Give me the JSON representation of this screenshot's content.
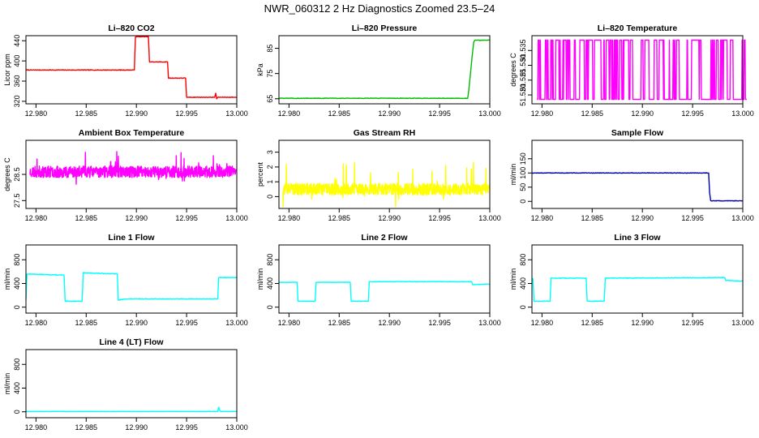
{
  "figure": {
    "title": "NWR_060312  2 Hz Diagnostics Zoomed 23.5–24"
  },
  "chart_data": [
    {
      "type": "line",
      "title": "Li–820 CO2",
      "ylabel": "Licor ppm",
      "xlim": [
        12.979,
        13.0
      ],
      "ylim": [
        315,
        450
      ],
      "xticks": [
        12.98,
        12.985,
        12.99,
        12.995,
        13.0
      ],
      "xtick_labels": [
        "12.980",
        "12.985",
        "12.990",
        "12.995",
        "13.000"
      ],
      "yticks": [
        320,
        360,
        400,
        440
      ],
      "ytick_labels": [
        "320",
        "360",
        "400",
        "440"
      ],
      "color": "#ff0000",
      "noise": 0.6,
      "series": [
        {
          "x": [
            12.979,
            12.9898,
            12.9899,
            12.9912,
            12.9913,
            12.9931,
            12.9932,
            12.9949,
            12.995,
            12.9978,
            12.9979,
            12.998,
            12.9981,
            13.0
          ],
          "y": [
            382,
            382,
            448,
            448,
            398,
            398,
            366,
            366,
            328,
            328,
            336,
            325,
            328,
            328
          ]
        }
      ]
    },
    {
      "type": "line",
      "title": "Li–820 Pressure",
      "ylabel": "kPa",
      "xlim": [
        12.979,
        13.0
      ],
      "ylim": [
        63,
        90
      ],
      "xticks": [
        12.98,
        12.985,
        12.99,
        12.995,
        13.0
      ],
      "xtick_labels": [
        "12.980",
        "12.985",
        "12.990",
        "12.995",
        "13.000"
      ],
      "yticks": [
        65,
        75,
        85
      ],
      "ytick_labels": [
        "65",
        "75",
        "85"
      ],
      "color": "#00bb00",
      "noise": 0.1,
      "series": [
        {
          "x": [
            12.979,
            12.9966,
            12.9978,
            12.9979,
            12.998,
            12.9981,
            12.9982,
            12.9983,
            12.9984,
            12.9985,
            13.0
          ],
          "y": [
            65.2,
            65.2,
            65.2,
            68,
            72,
            76,
            80,
            84,
            87.5,
            88.2,
            88.2
          ]
        }
      ]
    },
    {
      "type": "line",
      "title": "Li–820 Temperature",
      "ylabel": "degrees C",
      "xlim": [
        12.979,
        13.0
      ],
      "ylim": [
        51.517,
        51.54
      ],
      "xticks": [
        12.98,
        12.985,
        12.99,
        12.995,
        13.0
      ],
      "xtick_labels": [
        "12.980",
        "12.985",
        "12.990",
        "12.995",
        "13.000"
      ],
      "yticks": [
        51.52,
        51.525,
        51.53,
        51.535
      ],
      "ytick_labels": [
        "51.520",
        "51.525",
        "51.530",
        "51.535"
      ],
      "color": "#ff00ff",
      "pattern": "binary",
      "levels": [
        51.5185,
        51.5385
      ],
      "seed": 11,
      "n": 500
    },
    {
      "type": "line",
      "title": "Ambient Box Temperature",
      "ylabel": "degrees C",
      "xlim": [
        12.979,
        13.0
      ],
      "ylim": [
        27.2,
        29.8
      ],
      "xticks": [
        12.98,
        12.985,
        12.99,
        12.995,
        13.0
      ],
      "xtick_labels": [
        "12.980",
        "12.985",
        "12.990",
        "12.995",
        "13.000"
      ],
      "yticks": [
        27.5,
        28.5
      ],
      "ytick_labels": [
        "27.5",
        "28.5"
      ],
      "color": "#ff00ff",
      "pattern": "noise",
      "center": 28.6,
      "spread": 0.22,
      "spikes": 0.55,
      "seed": 23,
      "n": 900
    },
    {
      "type": "line",
      "title": "Gas Stream RH",
      "ylabel": "percent",
      "xlim": [
        12.979,
        13.0
      ],
      "ylim": [
        -0.8,
        3.8
      ],
      "xticks": [
        12.98,
        12.985,
        12.99,
        12.995,
        13.0
      ],
      "xtick_labels": [
        "12.980",
        "12.985",
        "12.990",
        "12.995",
        "13.000"
      ],
      "yticks": [
        0,
        1,
        2,
        3
      ],
      "ytick_labels": [
        "0",
        "1",
        "2",
        "3"
      ],
      "color": "#ffff00",
      "pattern": "noise",
      "center": 0.5,
      "spread": 0.4,
      "spikes": 1.6,
      "seed": 37,
      "n": 900
    },
    {
      "type": "line",
      "title": "Sample Flow",
      "ylabel": "ml/min",
      "xlim": [
        12.979,
        13.0
      ],
      "ylim": [
        -25,
        215
      ],
      "xticks": [
        12.98,
        12.985,
        12.99,
        12.995,
        13.0
      ],
      "xtick_labels": [
        "12.980",
        "12.985",
        "12.990",
        "12.995",
        "13.000"
      ],
      "yticks": [
        0,
        50,
        100,
        150
      ],
      "ytick_labels": [
        "0",
        "50",
        "100",
        "150"
      ],
      "color": "#0000aa",
      "noise": 0.8,
      "series": [
        {
          "x": [
            12.979,
            12.9966,
            12.9967,
            12.9968,
            13.0
          ],
          "y": [
            100,
            100,
            30,
            2,
            2
          ]
        }
      ]
    },
    {
      "type": "line",
      "title": "Line 1 Flow",
      "ylabel": "ml/min",
      "xlim": [
        12.979,
        13.0
      ],
      "ylim": [
        -100,
        1050
      ],
      "xticks": [
        12.98,
        12.985,
        12.99,
        12.995,
        13.0
      ],
      "xtick_labels": [
        "12.980",
        "12.985",
        "12.990",
        "12.995",
        "13.000"
      ],
      "yticks": [
        0,
        400,
        800
      ],
      "ytick_labels": [
        "0",
        "400",
        "800"
      ],
      "color": "#00ffff",
      "noise": 5,
      "series": [
        {
          "x": [
            12.979,
            12.9791,
            12.9828,
            12.9829,
            12.9846,
            12.9847,
            12.9881,
            12.9882,
            12.989,
            12.9981,
            12.9982,
            13.0
          ],
          "y": [
            120,
            560,
            540,
            100,
            100,
            580,
            560,
            120,
            140,
            140,
            500,
            500
          ]
        }
      ]
    },
    {
      "type": "line",
      "title": "Line 2 Flow",
      "ylabel": "ml/min",
      "xlim": [
        12.979,
        13.0
      ],
      "ylim": [
        -100,
        1050
      ],
      "xticks": [
        12.98,
        12.985,
        12.99,
        12.995,
        13.0
      ],
      "xtick_labels": [
        "12.980",
        "12.985",
        "12.990",
        "12.995",
        "13.000"
      ],
      "yticks": [
        0,
        400,
        800
      ],
      "ytick_labels": [
        "0",
        "400",
        "800"
      ],
      "color": "#00ffff",
      "noise": 4,
      "series": [
        {
          "x": [
            12.979,
            12.9808,
            12.9809,
            12.9826,
            12.9827,
            12.9861,
            12.9862,
            12.9879,
            12.988,
            12.9982,
            12.9983,
            13.0
          ],
          "y": [
            420,
            420,
            100,
            100,
            420,
            420,
            100,
            100,
            430,
            430,
            380,
            390
          ]
        }
      ]
    },
    {
      "type": "line",
      "title": "Line 3 Flow",
      "ylabel": "ml/min",
      "xlim": [
        12.979,
        13.0
      ],
      "ylim": [
        -100,
        1050
      ],
      "xticks": [
        12.98,
        12.985,
        12.99,
        12.995,
        13.0
      ],
      "xtick_labels": [
        "12.980",
        "12.985",
        "12.990",
        "12.995",
        "13.000"
      ],
      "yticks": [
        0,
        400,
        800
      ],
      "ytick_labels": [
        "0",
        "400",
        "800"
      ],
      "color": "#00ffff",
      "noise": 5,
      "series": [
        {
          "x": [
            12.979,
            12.9791,
            12.9792,
            12.9808,
            12.9809,
            12.9844,
            12.9845,
            12.9862,
            12.9863,
            12.9982,
            12.9983,
            13.0
          ],
          "y": [
            480,
            480,
            100,
            100,
            490,
            490,
            100,
            100,
            490,
            500,
            450,
            440
          ]
        }
      ]
    },
    {
      "type": "line",
      "title": "Line 4 (LT) Flow",
      "ylabel": "ml/min",
      "xlim": [
        12.979,
        13.0
      ],
      "ylim": [
        -100,
        1050
      ],
      "xticks": [
        12.98,
        12.985,
        12.99,
        12.995,
        13.0
      ],
      "xtick_labels": [
        "12.980",
        "12.985",
        "12.990",
        "12.995",
        "13.000"
      ],
      "yticks": [
        0,
        400,
        800
      ],
      "ytick_labels": [
        "0",
        "400",
        "800"
      ],
      "color": "#00ffff",
      "noise": 2,
      "series": [
        {
          "x": [
            12.979,
            12.9981,
            12.9982,
            12.9983,
            12.9984,
            13.0
          ],
          "y": [
            5,
            5,
            80,
            20,
            5,
            5
          ]
        }
      ]
    }
  ]
}
